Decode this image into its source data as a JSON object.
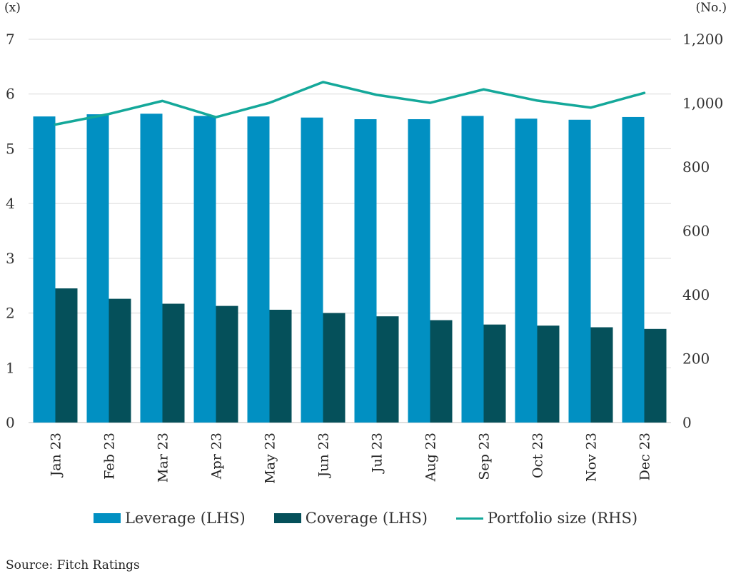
{
  "chart_data": {
    "type": "bar",
    "categories": [
      "Jan 23",
      "Feb 23",
      "Mar 23",
      "Apr 23",
      "May 23",
      "Jun 23",
      "Jul 23",
      "Aug 23",
      "Sep 23",
      "Oct 23",
      "Nov 23",
      "Dec 23"
    ],
    "series": [
      {
        "name": "Leverage (LHS)",
        "type": "bar",
        "axis": "left",
        "color": "#0190c2",
        "values": [
          5.59,
          5.63,
          5.64,
          5.6,
          5.59,
          5.57,
          5.54,
          5.54,
          5.6,
          5.55,
          5.53,
          5.58
        ]
      },
      {
        "name": "Coverage (LHS)",
        "type": "bar",
        "axis": "left",
        "color": "#05505a",
        "values": [
          2.45,
          2.26,
          2.17,
          2.13,
          2.06,
          2.0,
          1.94,
          1.87,
          1.79,
          1.77,
          1.74,
          1.71
        ]
      },
      {
        "name": "Portfolio size (RHS)",
        "type": "line",
        "axis": "right",
        "color": "#14a89a",
        "values": [
          933,
          966,
          1007,
          956,
          1001,
          1066,
          1026,
          1001,
          1043,
          1008,
          986,
          1032
        ]
      }
    ],
    "left_axis": {
      "unit": "(x)",
      "ylim": [
        0,
        7
      ],
      "ticks": [
        "0",
        "1",
        "2",
        "3",
        "4",
        "5",
        "6",
        "7"
      ]
    },
    "right_axis": {
      "unit": "(No.)",
      "ylim": [
        0,
        1200
      ],
      "ticks": [
        "0",
        "200",
        "400",
        "600",
        "800",
        "1,000",
        "1,200"
      ]
    },
    "grid": true,
    "legend_position": "bottom"
  },
  "legend": {
    "leverage": "Leverage (LHS)",
    "coverage": "Coverage (LHS)",
    "portfolio": "Portfolio size (RHS)"
  },
  "source": "Source: Fitch Ratings"
}
